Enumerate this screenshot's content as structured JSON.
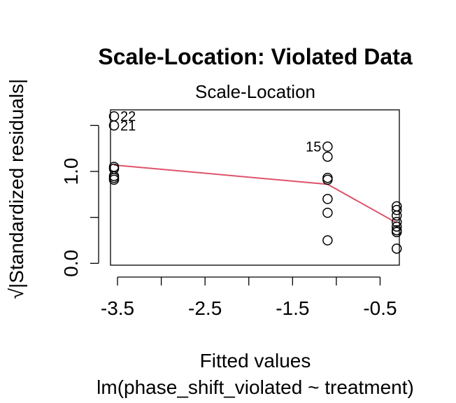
{
  "chart_data": {
    "type": "scatter",
    "title": "Scale-Location: Violated Data",
    "subtitle": "Scale-Location",
    "xlabel": "Fitted values",
    "xlabel2": "lm(phase_shift_violated ~ treatment)",
    "ylabel": "√|Standardized residuals|",
    "xlim": [
      -3.58,
      -0.28
    ],
    "ylim": [
      -0.02,
      1.67
    ],
    "x_ticks": [
      -3.5,
      -3.0,
      -2.5,
      -2.0,
      -1.5,
      -1.0,
      -0.5
    ],
    "x_tick_labels": [
      "-3.5",
      "",
      "-2.5",
      "",
      "-1.5",
      "",
      "-0.5"
    ],
    "y_ticks": [
      0.0,
      0.5,
      1.0,
      1.5
    ],
    "y_tick_labels": [
      "0.0",
      "",
      "1.0",
      ""
    ],
    "grid": false,
    "colors": {
      "points": "#000000",
      "smooth": "#DF536B"
    },
    "points": [
      {
        "x": -3.54,
        "y": 1.6,
        "label": "22"
      },
      {
        "x": -3.54,
        "y": 1.5,
        "label": "21"
      },
      {
        "x": -3.54,
        "y": 1.05,
        "label": ""
      },
      {
        "x": -3.54,
        "y": 1.03,
        "label": ""
      },
      {
        "x": -3.54,
        "y": 0.95,
        "label": ""
      },
      {
        "x": -3.54,
        "y": 0.93,
        "label": ""
      },
      {
        "x": -3.54,
        "y": 0.91,
        "label": ""
      },
      {
        "x": -1.1,
        "y": 1.27,
        "label": "15"
      },
      {
        "x": -1.1,
        "y": 1.16,
        "label": ""
      },
      {
        "x": -1.1,
        "y": 0.93,
        "label": ""
      },
      {
        "x": -1.1,
        "y": 0.91,
        "label": ""
      },
      {
        "x": -1.1,
        "y": 0.7,
        "label": ""
      },
      {
        "x": -1.1,
        "y": 0.55,
        "label": ""
      },
      {
        "x": -1.1,
        "y": 0.25,
        "label": ""
      },
      {
        "x": -0.31,
        "y": 0.62,
        "label": ""
      },
      {
        "x": -0.31,
        "y": 0.58,
        "label": ""
      },
      {
        "x": -0.31,
        "y": 0.52,
        "label": ""
      },
      {
        "x": -0.31,
        "y": 0.45,
        "label": ""
      },
      {
        "x": -0.31,
        "y": 0.4,
        "label": ""
      },
      {
        "x": -0.31,
        "y": 0.36,
        "label": ""
      },
      {
        "x": -0.31,
        "y": 0.34,
        "label": ""
      },
      {
        "x": -0.31,
        "y": 0.16,
        "label": ""
      }
    ],
    "smooth_line": [
      {
        "x": -3.54,
        "y": 1.07
      },
      {
        "x": -1.1,
        "y": 0.86
      },
      {
        "x": -0.31,
        "y": 0.44
      }
    ]
  }
}
